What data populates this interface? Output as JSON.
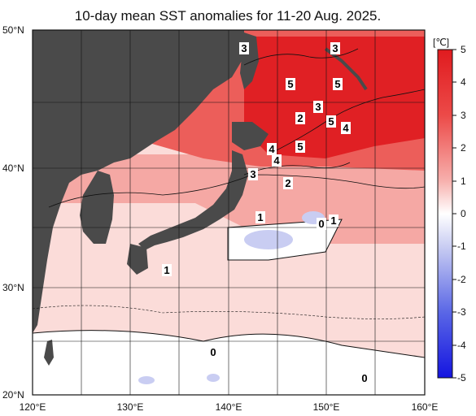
{
  "title": "10-day mean SST anomalies for 11-20 Aug. 2025.",
  "lat_labels": [
    "50°N",
    "40°N",
    "30°N",
    "20°N"
  ],
  "lon_labels": [
    "120°E",
    "130°E",
    "140°E",
    "150°E",
    "160°E"
  ],
  "colorbar": {
    "unit": "[℃]",
    "ticks": [
      "5",
      "4",
      "3",
      "2",
      "1",
      "0",
      "-1",
      "-2",
      "-3",
      "-4",
      "-5"
    ]
  },
  "contour_labels": [
    "3",
    "3",
    "5",
    "5",
    "3",
    "2",
    "5",
    "4",
    "4",
    "4",
    "5",
    "3",
    "2",
    "1",
    "0",
    "1",
    "1",
    "0",
    "0"
  ],
  "colors": {
    "land": "#4a4a4a",
    "strong_warm": "#e8262a",
    "warm": "#f5a8a4",
    "weak_warm": "#fbdcd9",
    "neutral": "#ffffff",
    "cool": "#c9cdf2"
  }
}
